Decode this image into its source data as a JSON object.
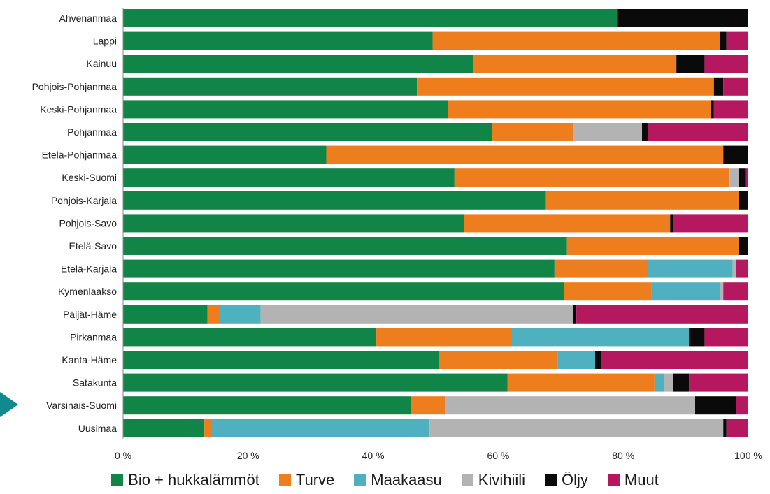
{
  "chart_data": {
    "type": "bar",
    "orientation": "horizontal",
    "stacked": true,
    "categories": [
      "Ahvenanmaa",
      "Lappi",
      "Kainuu",
      "Pohjois-Pohjanmaa",
      "Keski-Pohjanmaa",
      "Pohjanmaa",
      "Etelä-Pohjanmaa",
      "Keski-Suomi",
      "Pohjois-Karjala",
      "Pohjois-Savo",
      "Etelä-Savo",
      "Etelä-Karjala",
      "Kymenlaakso",
      "Päijät-Häme",
      "Pirkanmaa",
      "Kanta-Häme",
      "Satakunta",
      "Varsinais-Suomi",
      "Uusimaa"
    ],
    "series": [
      {
        "name": "Bio + hukkalämmöt",
        "color": "#118447",
        "values": [
          79.0,
          49.5,
          56.0,
          47.0,
          52.0,
          59.0,
          32.5,
          53.0,
          67.5,
          54.5,
          71.0,
          69.0,
          70.5,
          13.5,
          40.5,
          50.5,
          61.5,
          46.0,
          13.0
        ]
      },
      {
        "name": "Turve",
        "color": "#ee7d1d",
        "values": [
          0.0,
          46.0,
          32.5,
          47.5,
          42.0,
          13.0,
          63.5,
          44.0,
          31.0,
          33.0,
          27.5,
          15.0,
          14.0,
          2.0,
          21.5,
          19.0,
          23.5,
          5.5,
          1.0
        ]
      },
      {
        "name": "Maakaasu",
        "color": "#4fb1bf",
        "values": [
          0.0,
          0.0,
          0.0,
          0.0,
          0.0,
          0.0,
          0.0,
          0.0,
          0.0,
          0.0,
          0.0,
          13.5,
          11.0,
          6.5,
          28.5,
          6.0,
          1.5,
          0.0,
          35.0
        ]
      },
      {
        "name": "Kivihiili",
        "color": "#b3b3b3",
        "values": [
          0.0,
          0.0,
          0.0,
          0.0,
          0.0,
          11.0,
          0.0,
          1.5,
          0.0,
          0.0,
          0.0,
          0.5,
          0.5,
          50.0,
          0.0,
          0.0,
          1.5,
          40.0,
          47.0
        ]
      },
      {
        "name": "Öljy",
        "color": "#0a0a0a",
        "values": [
          21.0,
          1.0,
          4.5,
          1.5,
          0.5,
          1.0,
          4.0,
          1.0,
          1.5,
          0.5,
          1.5,
          0.0,
          0.0,
          0.5,
          2.5,
          1.0,
          2.5,
          6.5,
          0.5
        ]
      },
      {
        "name": "Muut",
        "color": "#b5185f",
        "values": [
          0.0,
          3.5,
          7.0,
          4.0,
          5.5,
          16.0,
          0.0,
          0.5,
          0.0,
          12.0,
          0.0,
          2.0,
          4.0,
          27.5,
          7.0,
          23.5,
          9.5,
          2.0,
          3.5
        ]
      }
    ],
    "xticks": [
      "0 %",
      "20 %",
      "40 %",
      "60 %",
      "80 %",
      "100 %"
    ],
    "xlim": [
      0,
      100
    ],
    "grid": false,
    "legend_position": "bottom",
    "highlighted_category": "Varsinais-Suomi",
    "highlight_color": "#0f8a8e"
  }
}
